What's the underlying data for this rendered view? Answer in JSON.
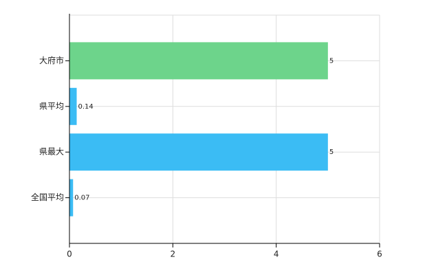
{
  "chart_data": {
    "type": "bar",
    "orientation": "horizontal",
    "categories": [
      "大府市",
      "県平均",
      "県最大",
      "全国平均"
    ],
    "values": [
      5,
      0.14,
      5,
      0.07
    ],
    "colors": [
      "#6dd48b",
      "#3bbcf4",
      "#3bbcf4",
      "#3bbcf4"
    ],
    "xlim": [
      0,
      6
    ],
    "xticks": [
      0,
      2,
      4,
      6
    ],
    "grid": true
  }
}
